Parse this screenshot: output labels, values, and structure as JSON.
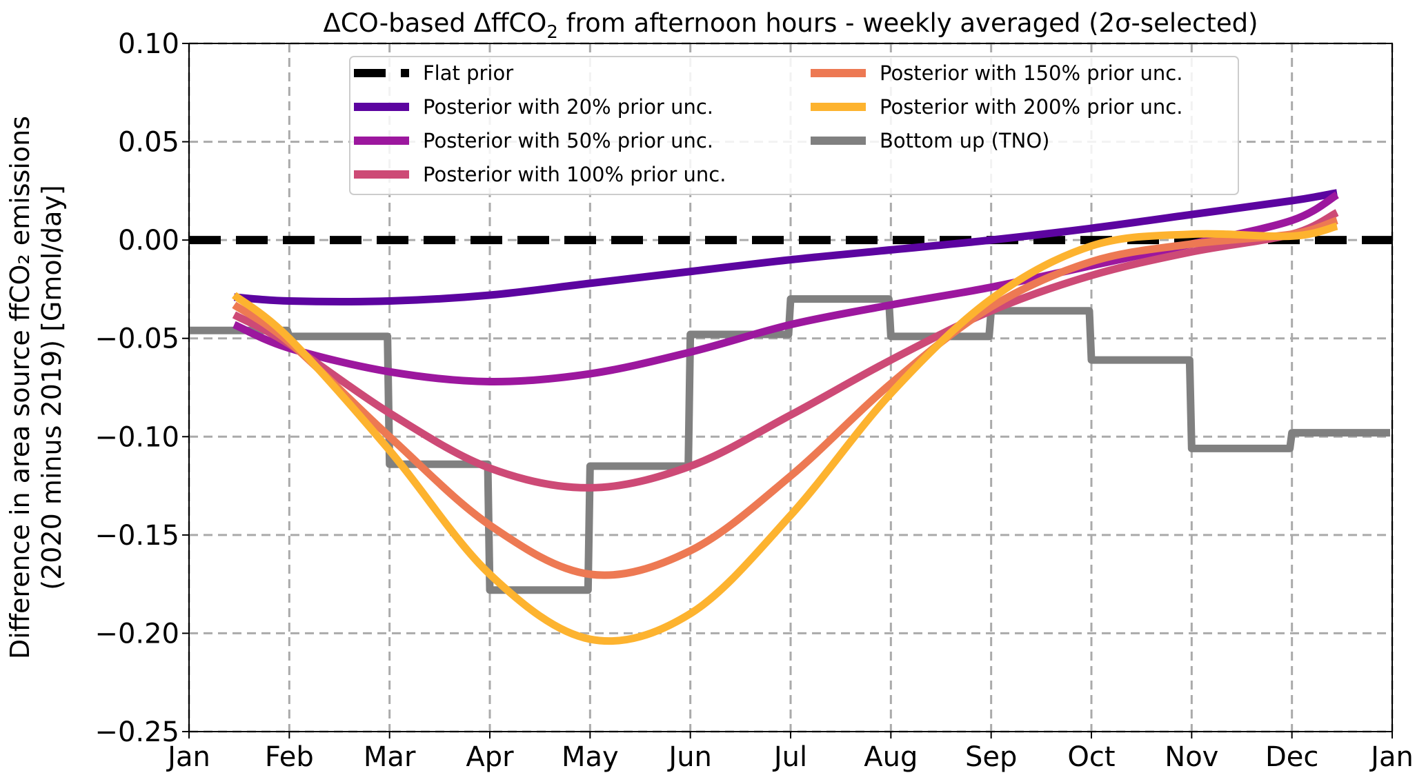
{
  "chart_data": {
    "type": "line",
    "title": "ΔCO-based ΔffCO",
    "title_sub": "2",
    "title_rest": " from afternoon hours - weekly averaged (2σ-selected)",
    "ylabel_line1": "Difference in area source ffCO₂ emissions",
    "ylabel_line2": "(2020 minus 2019) [Gmol/day]",
    "xlabel": "",
    "x_unit": "months since Jan 1 2020",
    "xlim": [
      0,
      12
    ],
    "ylim": [
      -0.25,
      0.1
    ],
    "grid": true,
    "legend_placement": "top-center",
    "x_ticks": [
      0,
      1,
      2,
      3,
      4,
      5,
      6,
      7,
      8,
      9,
      10,
      11,
      12
    ],
    "x_tick_labels": [
      "Jan",
      "Feb",
      "Mar",
      "Apr",
      "May",
      "Jun",
      "Jul",
      "Aug",
      "Sep",
      "Oct",
      "Nov",
      "Dec",
      "Jan"
    ],
    "y_ticks": [
      0.1,
      0.05,
      0.0,
      -0.05,
      -0.1,
      -0.15,
      -0.2,
      -0.25
    ],
    "y_tick_labels": [
      "0.10",
      "0.05",
      "0.00",
      "−0.05",
      "−0.10",
      "−0.15",
      "−0.20",
      "−0.25"
    ],
    "series": [
      {
        "name": "Flat prior",
        "color": "#000000",
        "style": "dashed",
        "x": [
          0,
          12
        ],
        "y": [
          0,
          0
        ]
      },
      {
        "name": "Posterior with 20% prior unc.",
        "color": "#5c04a0",
        "style": "solid",
        "x": [
          0.45,
          1,
          2,
          3,
          4,
          5,
          6,
          7,
          8,
          9,
          10,
          11,
          11.45
        ],
        "y": [
          -0.029,
          -0.031,
          -0.031,
          -0.028,
          -0.022,
          -0.016,
          -0.01,
          -0.005,
          0.0,
          0.006,
          0.013,
          0.02,
          0.024
        ]
      },
      {
        "name": "Posterior with 50% prior unc.",
        "color": "#9c179e",
        "style": "solid",
        "x": [
          0.45,
          1,
          2,
          3,
          4,
          5,
          6,
          7,
          8,
          9,
          10,
          11,
          11.45
        ],
        "y": [
          -0.043,
          -0.055,
          -0.067,
          -0.072,
          -0.068,
          -0.057,
          -0.043,
          -0.033,
          -0.024,
          -0.013,
          -0.002,
          0.01,
          0.023
        ]
      },
      {
        "name": "Posterior with 100% prior unc.",
        "color": "#cd4a76",
        "style": "solid",
        "x": [
          0.45,
          1,
          2,
          3,
          4,
          5,
          6,
          7,
          8,
          9,
          10,
          11,
          11.45
        ],
        "y": [
          -0.038,
          -0.053,
          -0.088,
          -0.116,
          -0.126,
          -0.115,
          -0.089,
          -0.061,
          -0.036,
          -0.018,
          -0.006,
          0.003,
          0.014
        ]
      },
      {
        "name": "Posterior with 150% prior unc.",
        "color": "#ed7953",
        "style": "solid",
        "x": [
          0.45,
          1,
          2,
          3,
          4,
          5,
          6,
          7,
          8,
          9,
          10,
          11,
          11.45
        ],
        "y": [
          -0.033,
          -0.052,
          -0.1,
          -0.145,
          -0.17,
          -0.158,
          -0.12,
          -0.073,
          -0.034,
          -0.011,
          -0.002,
          0.003,
          0.01
        ]
      },
      {
        "name": "Posterior with 200% prior unc.",
        "color": "#fdb32f",
        "style": "solid",
        "x": [
          0.45,
          1,
          2,
          3,
          4,
          5,
          6,
          7,
          8,
          9,
          10,
          11,
          11.45
        ],
        "y": [
          -0.028,
          -0.05,
          -0.107,
          -0.17,
          -0.203,
          -0.19,
          -0.14,
          -0.078,
          -0.03,
          -0.003,
          0.003,
          0.002,
          0.007
        ]
      },
      {
        "name": "Bottom up (TNO)",
        "color": "#808080",
        "style": "step",
        "x": [
          0,
          1,
          2,
          3,
          4,
          5,
          6,
          7,
          8,
          9,
          10,
          11,
          12
        ],
        "y": [
          -0.046,
          -0.049,
          -0.114,
          -0.178,
          -0.115,
          -0.048,
          -0.03,
          -0.049,
          -0.036,
          -0.061,
          -0.106,
          -0.098,
          -0.098
        ]
      }
    ],
    "legend_order": [
      0,
      1,
      2,
      3,
      4,
      5,
      6
    ]
  }
}
